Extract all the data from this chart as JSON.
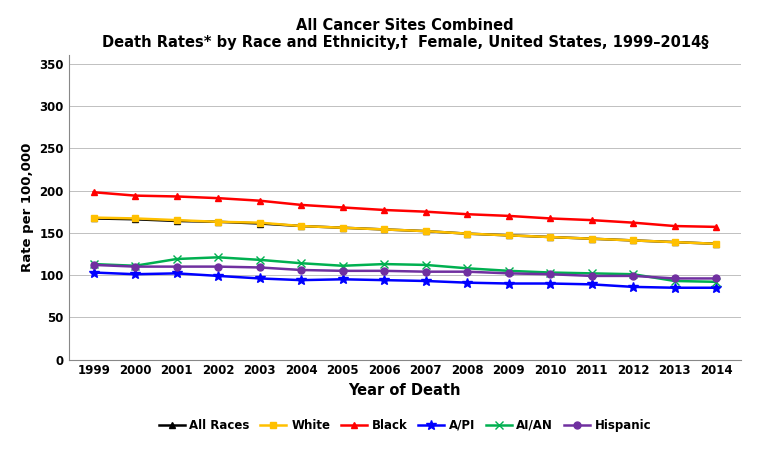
{
  "title_line1": "All Cancer Sites Combined",
  "title_line2": "Death Rates* by Race and Ethnicity,†  Female, United States, 1999–2014§",
  "xlabel": "Year of Death",
  "ylabel": "Rate per 100,000",
  "years": [
    1999,
    2000,
    2001,
    2002,
    2003,
    2004,
    2005,
    2006,
    2007,
    2008,
    2009,
    2010,
    2011,
    2012,
    2013,
    2014
  ],
  "series": {
    "All Races": {
      "color": "#000000",
      "marker": "^",
      "markersize": 5,
      "values": [
        167,
        166,
        164,
        163,
        161,
        158,
        156,
        154,
        152,
        149,
        147,
        145,
        143,
        141,
        139,
        137
      ]
    },
    "White": {
      "color": "#FFC000",
      "marker": "s",
      "markersize": 5,
      "values": [
        168,
        167,
        165,
        163,
        162,
        158,
        156,
        154,
        152,
        149,
        147,
        145,
        143,
        141,
        139,
        137
      ]
    },
    "Black": {
      "color": "#FF0000",
      "marker": "^",
      "markersize": 5,
      "values": [
        198,
        194,
        193,
        191,
        188,
        183,
        180,
        177,
        175,
        172,
        170,
        167,
        165,
        162,
        158,
        157
      ]
    },
    "A/PI": {
      "color": "#0000FF",
      "marker": "*",
      "markersize": 7,
      "values": [
        103,
        101,
        102,
        99,
        96,
        94,
        95,
        94,
        93,
        91,
        90,
        90,
        89,
        86,
        85,
        85
      ]
    },
    "AI/AN": {
      "color": "#00B050",
      "marker": "x",
      "markersize": 6,
      "values": [
        113,
        111,
        119,
        121,
        118,
        114,
        111,
        113,
        112,
        108,
        105,
        103,
        102,
        101,
        93,
        92
      ]
    },
    "Hispanic": {
      "color": "#7030A0",
      "marker": "o",
      "markersize": 5,
      "values": [
        112,
        110,
        110,
        110,
        109,
        106,
        105,
        105,
        104,
        104,
        102,
        101,
        99,
        99,
        96,
        96
      ]
    }
  },
  "ylim": [
    0,
    360
  ],
  "yticks": [
    0,
    50,
    100,
    150,
    200,
    250,
    300,
    350
  ],
  "background_color": "#FFFFFF",
  "grid_color": "#C0C0C0",
  "linewidth": 1.8
}
